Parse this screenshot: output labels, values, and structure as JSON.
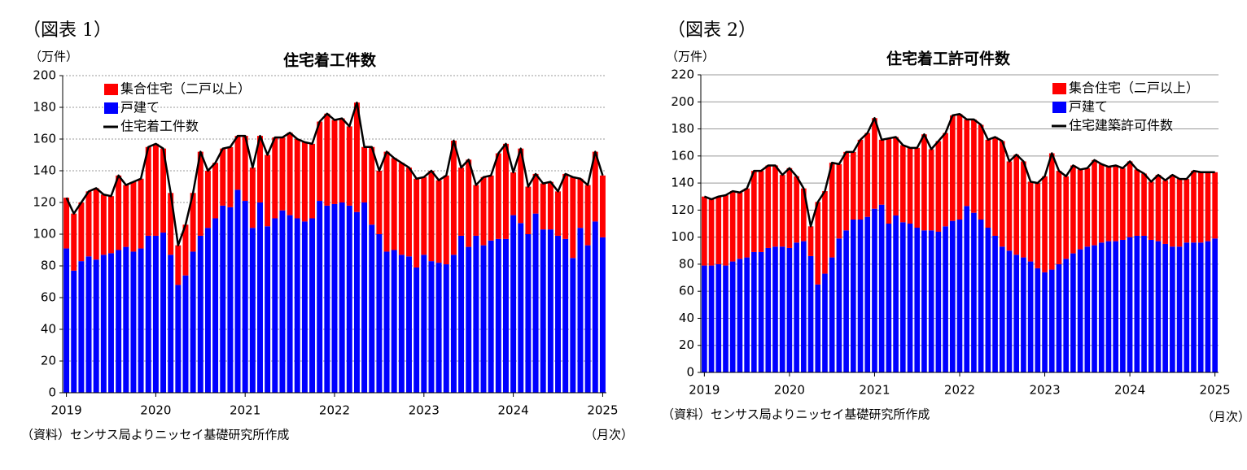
{
  "chart_data": [
    {
      "type": "bar",
      "caption": "（図表 1）",
      "title": "住宅着工件数",
      "y_unit": "（万件）",
      "x_unit": "（月次）",
      "source": "（資料）センサス局よりニッセイ基礎研究所作成",
      "categories": [
        "2019",
        null,
        null,
        null,
        null,
        null,
        null,
        null,
        null,
        null,
        null,
        null,
        "2020",
        null,
        null,
        null,
        null,
        null,
        null,
        null,
        null,
        null,
        null,
        null,
        "2021",
        null,
        null,
        null,
        null,
        null,
        null,
        null,
        null,
        null,
        null,
        null,
        "2022",
        null,
        null,
        null,
        null,
        null,
        null,
        null,
        null,
        null,
        null,
        null,
        "2023",
        null,
        null,
        null,
        null,
        null,
        null,
        null,
        null,
        null,
        null,
        null,
        "2024",
        null,
        null,
        null,
        null,
        null,
        null,
        null,
        null,
        null,
        null,
        null,
        "2025"
      ],
      "series": [
        {
          "name": "集合住宅（二戸以上）",
          "color": "#ff0000",
          "values": [
            32,
            36,
            37,
            41,
            45,
            38,
            36,
            47,
            39,
            44,
            44,
            56,
            58,
            53,
            39,
            25,
            32,
            37,
            53,
            36,
            35,
            36,
            38,
            34,
            41,
            38,
            42,
            45,
            51,
            46,
            52,
            50,
            50,
            47,
            50,
            58,
            53,
            53,
            50,
            69,
            35,
            49,
            40,
            63,
            58,
            58,
            56,
            56,
            49,
            57,
            52,
            56,
            72,
            43,
            55,
            32,
            43,
            41,
            54,
            60,
            27,
            47,
            30,
            25,
            29,
            30,
            28,
            41,
            51,
            31,
            38,
            44,
            39
          ]
        },
        {
          "name": "戸建て",
          "color": "#0000ff",
          "values": [
            91,
            77,
            83,
            86,
            84,
            87,
            88,
            90,
            92,
            89,
            91,
            99,
            99,
            101,
            87,
            68,
            74,
            89,
            99,
            104,
            110,
            118,
            117,
            128,
            121,
            104,
            120,
            105,
            110,
            115,
            112,
            110,
            108,
            110,
            121,
            118,
            119,
            120,
            118,
            114,
            120,
            106,
            100,
            89,
            90,
            87,
            86,
            79,
            87,
            83,
            82,
            81,
            87,
            99,
            92,
            99,
            93,
            96,
            97,
            97,
            112,
            107,
            100,
            113,
            103,
            103,
            99,
            97,
            85,
            104,
            93,
            108,
            98
          ]
        },
        {
          "name": "住宅着工件数",
          "type": "line",
          "color": "#000000",
          "values": [
            123,
            113,
            120,
            127,
            129,
            125,
            124,
            137,
            131,
            133,
            135,
            155,
            157,
            154,
            126,
            93,
            106,
            126,
            152,
            140,
            145,
            154,
            155,
            162,
            162,
            142,
            162,
            150,
            161,
            161,
            164,
            160,
            158,
            157,
            171,
            176,
            172,
            173,
            168,
            183,
            155,
            155,
            140,
            152,
            148,
            145,
            142,
            135,
            136,
            140,
            134,
            137,
            159,
            142,
            147,
            131,
            136,
            137,
            151,
            157,
            139,
            154,
            130,
            138,
            132,
            133,
            127,
            138,
            136,
            135,
            131,
            152,
            137
          ]
        }
      ],
      "ylim": [
        0,
        200
      ],
      "yticks": [
        0,
        20,
        40,
        60,
        80,
        100,
        120,
        140,
        160,
        180,
        200
      ],
      "grid": true,
      "grid_style": "dotted",
      "legend": "upper left"
    },
    {
      "type": "bar",
      "caption": "（図表 2）",
      "title": "住宅着工許可件数",
      "y_unit": "（万件）",
      "x_unit": "（月次）",
      "source": "（資料）センサス局よりニッセイ基礎研究所作成",
      "categories": [
        "2019",
        null,
        null,
        null,
        null,
        null,
        null,
        null,
        null,
        null,
        null,
        null,
        "2020",
        null,
        null,
        null,
        null,
        null,
        null,
        null,
        null,
        null,
        null,
        null,
        "2021",
        null,
        null,
        null,
        null,
        null,
        null,
        null,
        null,
        null,
        null,
        null,
        "2022",
        null,
        null,
        null,
        null,
        null,
        null,
        null,
        null,
        null,
        null,
        null,
        "2023",
        null,
        null,
        null,
        null,
        null,
        null,
        null,
        null,
        null,
        null,
        null,
        "2024",
        null,
        null,
        null,
        null,
        null,
        null,
        null,
        null,
        null,
        null,
        null,
        "2025"
      ],
      "series": [
        {
          "name": "集合住宅（二戸以上）",
          "color": "#ff0000",
          "values": [
            51,
            49,
            50,
            52,
            52,
            49,
            51,
            60,
            60,
            61,
            60,
            53,
            59,
            49,
            39,
            22,
            61,
            61,
            70,
            55,
            58,
            50,
            59,
            62,
            67,
            48,
            63,
            58,
            57,
            56,
            59,
            71,
            60,
            67,
            69,
            78,
            78,
            64,
            69,
            70,
            65,
            73,
            78,
            66,
            74,
            71,
            59,
            63,
            71,
            86,
            69,
            61,
            65,
            59,
            58,
            63,
            58,
            55,
            56,
            53,
            56,
            49,
            46,
            43,
            49,
            47,
            53,
            50,
            47,
            53,
            52,
            51,
            49
          ]
        },
        {
          "name": "戸建て",
          "color": "#0000ff",
          "values": [
            79,
            79,
            80,
            79,
            82,
            84,
            85,
            89,
            89,
            92,
            93,
            93,
            92,
            96,
            97,
            86,
            65,
            73,
            85,
            99,
            105,
            113,
            113,
            115,
            121,
            124,
            110,
            116,
            111,
            110,
            107,
            105,
            105,
            104,
            108,
            112,
            113,
            123,
            118,
            113,
            107,
            101,
            93,
            90,
            87,
            85,
            82,
            77,
            74,
            76,
            80,
            84,
            88,
            91,
            93,
            94,
            96,
            97,
            97,
            98,
            100,
            101,
            101,
            98,
            97,
            95,
            93,
            93,
            96,
            96,
            96,
            97,
            99
          ]
        },
        {
          "name": "住宅建築許可件数",
          "type": "line",
          "color": "#000000",
          "values": [
            130,
            128,
            130,
            131,
            134,
            133,
            136,
            149,
            149,
            153,
            153,
            146,
            151,
            145,
            136,
            108,
            126,
            134,
            155,
            154,
            163,
            163,
            172,
            177,
            188,
            172,
            173,
            174,
            168,
            166,
            166,
            176,
            165,
            171,
            177,
            190,
            191,
            187,
            187,
            183,
            172,
            174,
            171,
            156,
            161,
            156,
            141,
            140,
            145,
            162,
            149,
            145,
            153,
            150,
            151,
            157,
            154,
            152,
            153,
            151,
            156,
            150,
            147,
            141,
            146,
            142,
            146,
            143,
            143,
            149,
            148,
            148,
            148
          ]
        }
      ],
      "ylim": [
        0,
        220
      ],
      "yticks": [
        0,
        20,
        40,
        60,
        80,
        100,
        120,
        140,
        160,
        180,
        200,
        220
      ],
      "grid": true,
      "grid_style": "solid",
      "legend": "upper right"
    }
  ]
}
